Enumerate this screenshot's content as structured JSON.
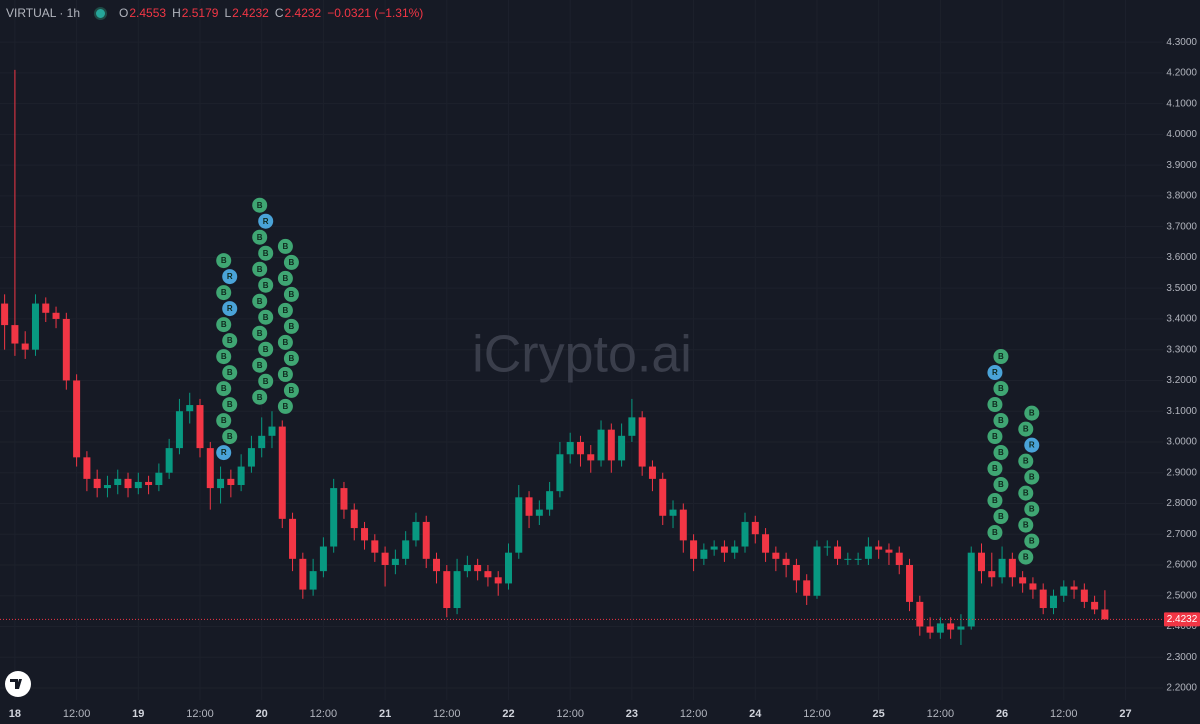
{
  "chart_data": {
    "type": "candlestick",
    "header": {
      "symbol": "VIRTUAL · 1h",
      "ohlc": [
        {
          "label": "O",
          "value": "2.4553"
        },
        {
          "label": "H",
          "value": "2.5179"
        },
        {
          "label": "L",
          "value": "2.4232"
        },
        {
          "label": "C",
          "value": "2.4232"
        }
      ],
      "change": "−0.0321 (−1.31%)"
    },
    "watermark": "iCrypto.ai",
    "up_color": "#089981",
    "down_color": "#f23645",
    "x": [
      -2,
      0,
      2,
      4,
      6,
      8,
      10,
      12,
      14,
      16,
      18,
      20,
      22,
      24,
      26,
      28,
      30,
      32,
      34,
      36,
      38,
      40,
      42,
      44,
      46,
      48,
      50,
      52,
      54,
      56,
      58,
      60,
      62,
      64,
      66,
      68,
      70,
      72,
      74,
      76,
      78,
      80,
      82,
      84,
      86,
      88,
      90,
      92,
      94,
      96,
      98,
      100,
      102,
      104,
      106,
      108,
      110,
      112,
      114,
      116,
      118,
      120,
      122,
      124,
      126,
      128,
      130,
      132,
      134,
      136,
      138,
      140,
      142,
      144,
      146,
      148,
      150,
      152,
      154,
      156,
      158,
      160,
      162,
      164,
      166,
      168,
      170,
      172,
      174,
      176,
      178,
      180,
      182,
      184,
      186,
      188,
      190,
      192,
      194,
      196,
      198,
      200,
      202,
      204,
      206,
      208,
      210,
      212
    ],
    "open": [
      3.45,
      3.38,
      3.32,
      3.3,
      3.45,
      3.42,
      3.4,
      3.2,
      2.95,
      2.88,
      2.85,
      2.86,
      2.88,
      2.85,
      2.87,
      2.86,
      2.9,
      2.98,
      3.1,
      3.12,
      2.98,
      2.85,
      2.88,
      2.86,
      2.92,
      2.98,
      3.02,
      3.05,
      2.75,
      2.62,
      2.52,
      2.58,
      2.66,
      2.85,
      2.78,
      2.72,
      2.68,
      2.64,
      2.6,
      2.62,
      2.68,
      2.74,
      2.62,
      2.58,
      2.46,
      2.58,
      2.6,
      2.58,
      2.56,
      2.54,
      2.64,
      2.82,
      2.76,
      2.78,
      2.84,
      2.96,
      3.0,
      2.96,
      2.94,
      3.04,
      2.94,
      3.02,
      3.08,
      2.92,
      2.88,
      2.76,
      2.78,
      2.68,
      2.62,
      2.65,
      2.66,
      2.64,
      2.66,
      2.74,
      2.7,
      2.64,
      2.62,
      2.6,
      2.55,
      2.5,
      2.66,
      2.66,
      2.62,
      2.62,
      2.62,
      2.66,
      2.65,
      2.64,
      2.6,
      2.48,
      2.4,
      2.38,
      2.41,
      2.39,
      2.4,
      2.64,
      2.58,
      2.56,
      2.62,
      2.56,
      2.54,
      2.52,
      2.46,
      2.5,
      2.53,
      2.52,
      2.48,
      2.4553
    ],
    "high": [
      3.48,
      4.21,
      3.36,
      3.48,
      3.47,
      3.44,
      3.42,
      3.22,
      2.97,
      2.91,
      2.89,
      2.91,
      2.9,
      2.9,
      2.89,
      2.93,
      3.01,
      3.14,
      3.16,
      3.14,
      3.0,
      2.92,
      2.91,
      2.96,
      3.02,
      3.08,
      3.1,
      3.07,
      2.77,
      2.64,
      2.62,
      2.69,
      2.88,
      2.87,
      2.8,
      2.74,
      2.7,
      2.66,
      2.65,
      2.71,
      2.77,
      2.76,
      2.64,
      2.6,
      2.62,
      2.63,
      2.62,
      2.6,
      2.58,
      2.67,
      2.86,
      2.84,
      2.81,
      2.87,
      3.0,
      3.03,
      3.02,
      2.99,
      3.07,
      3.06,
      3.06,
      3.14,
      3.1,
      2.94,
      2.9,
      2.81,
      2.8,
      2.7,
      2.67,
      2.68,
      2.68,
      2.68,
      2.77,
      2.76,
      2.72,
      2.66,
      2.64,
      2.62,
      2.57,
      2.68,
      2.68,
      2.68,
      2.64,
      2.64,
      2.69,
      2.68,
      2.67,
      2.66,
      2.62,
      2.5,
      2.43,
      2.43,
      2.43,
      2.44,
      2.66,
      2.67,
      2.64,
      2.66,
      2.64,
      2.58,
      2.56,
      2.54,
      2.52,
      2.55,
      2.55,
      2.54,
      2.5,
      2.5179
    ],
    "low": [
      3.3,
      3.28,
      3.27,
      3.28,
      3.39,
      3.37,
      3.17,
      2.92,
      2.84,
      2.82,
      2.82,
      2.83,
      2.82,
      2.83,
      2.83,
      2.84,
      2.88,
      2.96,
      3.06,
      2.95,
      2.78,
      2.8,
      2.82,
      2.84,
      2.9,
      2.95,
      2.98,
      2.72,
      2.58,
      2.49,
      2.5,
      2.56,
      2.64,
      2.75,
      2.68,
      2.65,
      2.61,
      2.53,
      2.57,
      2.6,
      2.66,
      2.59,
      2.54,
      2.43,
      2.44,
      2.56,
      2.55,
      2.53,
      2.5,
      2.52,
      2.62,
      2.72,
      2.73,
      2.76,
      2.82,
      2.93,
      2.92,
      2.9,
      2.92,
      2.9,
      2.92,
      3.0,
      2.89,
      2.84,
      2.73,
      2.72,
      2.64,
      2.58,
      2.6,
      2.63,
      2.61,
      2.62,
      2.64,
      2.67,
      2.61,
      2.58,
      2.56,
      2.51,
      2.47,
      2.49,
      2.63,
      2.6,
      2.6,
      2.6,
      2.6,
      2.62,
      2.6,
      2.57,
      2.45,
      2.37,
      2.36,
      2.36,
      2.36,
      2.34,
      2.39,
      2.54,
      2.53,
      2.54,
      2.53,
      2.51,
      2.49,
      2.44,
      2.44,
      2.48,
      2.49,
      2.46,
      2.44,
      2.4232
    ],
    "close": [
      3.38,
      3.32,
      3.3,
      3.45,
      3.42,
      3.4,
      3.2,
      2.95,
      2.88,
      2.85,
      2.86,
      2.88,
      2.85,
      2.87,
      2.86,
      2.9,
      2.98,
      3.1,
      3.12,
      2.98,
      2.85,
      2.88,
      2.86,
      2.92,
      2.98,
      3.02,
      3.05,
      2.75,
      2.62,
      2.52,
      2.58,
      2.66,
      2.85,
      2.78,
      2.72,
      2.68,
      2.64,
      2.6,
      2.62,
      2.68,
      2.74,
      2.62,
      2.58,
      2.46,
      2.58,
      2.6,
      2.58,
      2.56,
      2.54,
      2.64,
      2.82,
      2.76,
      2.78,
      2.84,
      2.96,
      3.0,
      2.96,
      2.94,
      3.04,
      2.94,
      3.02,
      3.08,
      2.92,
      2.88,
      2.76,
      2.78,
      2.68,
      2.62,
      2.65,
      2.66,
      2.64,
      2.66,
      2.74,
      2.7,
      2.64,
      2.62,
      2.6,
      2.55,
      2.5,
      2.66,
      2.66,
      2.62,
      2.62,
      2.62,
      2.66,
      2.65,
      2.64,
      2.6,
      2.48,
      2.4,
      2.38,
      2.41,
      2.39,
      2.4,
      2.64,
      2.58,
      2.56,
      2.62,
      2.56,
      2.54,
      2.52,
      2.46,
      2.5,
      2.53,
      2.52,
      2.48,
      2.4553,
      2.4232
    ],
    "xlim": [
      -2.9,
      223.3
    ],
    "xticks": [
      {
        "value": 0,
        "label": "18"
      },
      {
        "value": 12,
        "label": "12:00"
      },
      {
        "value": 24,
        "label": "19"
      },
      {
        "value": 36,
        "label": "12:00"
      },
      {
        "value": 48,
        "label": "20"
      },
      {
        "value": 60,
        "label": "12:00"
      },
      {
        "value": 72,
        "label": "21"
      },
      {
        "value": 84,
        "label": "12:00"
      },
      {
        "value": 96,
        "label": "22"
      },
      {
        "value": 108,
        "label": "12:00"
      },
      {
        "value": 120,
        "label": "23"
      },
      {
        "value": 132,
        "label": "12:00"
      },
      {
        "value": 144,
        "label": "24"
      },
      {
        "value": 156,
        "label": "12:00"
      },
      {
        "value": 168,
        "label": "25"
      },
      {
        "value": 180,
        "label": "12:00"
      },
      {
        "value": 192,
        "label": "26"
      },
      {
        "value": 204,
        "label": "12:00"
      },
      {
        "value": 216,
        "label": "27"
      }
    ],
    "ylim": [
      2.161,
      4.437
    ],
    "yticks": [
      {
        "value": 2.2,
        "label": "2.2000"
      },
      {
        "value": 2.3,
        "label": "2.3000"
      },
      {
        "value": 2.4,
        "label": "2.4000"
      },
      {
        "value": 2.5,
        "label": "2.5000"
      },
      {
        "value": 2.6,
        "label": "2.6000"
      },
      {
        "value": 2.7,
        "label": "2.7000"
      },
      {
        "value": 2.8,
        "label": "2.8000"
      },
      {
        "value": 2.9,
        "label": "2.9000"
      },
      {
        "value": 3.0,
        "label": "3.0000"
      },
      {
        "value": 3.1,
        "label": "3.1000"
      },
      {
        "value": 3.2,
        "label": "3.2000"
      },
      {
        "value": 3.3,
        "label": "3.3000"
      },
      {
        "value": 3.4,
        "label": "3.4000"
      },
      {
        "value": 3.5,
        "label": "3.5000"
      },
      {
        "value": 3.6,
        "label": "3.6000"
      },
      {
        "value": 3.7,
        "label": "3.7000"
      },
      {
        "value": 3.8,
        "label": "3.8000"
      },
      {
        "value": 3.9,
        "label": "3.9000"
      },
      {
        "value": 4.0,
        "label": "4.0000"
      },
      {
        "value": 4.1,
        "label": "4.1000"
      },
      {
        "value": 4.2,
        "label": "4.2000"
      },
      {
        "value": 4.3,
        "label": "4.3000"
      }
    ],
    "grid": true,
    "last_price": {
      "value": 2.4232,
      "label": "2.4232"
    },
    "markers": [
      {
        "x": 41,
        "labels": [
          "R",
          "B",
          "B",
          "B",
          "B",
          "B",
          "B",
          "B",
          "B",
          "R",
          "B",
          "R",
          "B"
        ]
      },
      {
        "x": 48,
        "labels": [
          "B",
          "B",
          "B",
          "B",
          "B",
          "B",
          "B",
          "B",
          "B",
          "B",
          "B",
          "R",
          "B"
        ]
      },
      {
        "x": 53,
        "labels": [
          "B",
          "B",
          "B",
          "B",
          "B",
          "B",
          "B",
          "B",
          "B",
          "B",
          "B"
        ]
      },
      {
        "x": 191,
        "labels": [
          "B",
          "B",
          "B",
          "B",
          "B",
          "B",
          "B",
          "B",
          "B",
          "B",
          "R",
          "B"
        ]
      },
      {
        "x": 197,
        "labels": [
          "B",
          "B",
          "B",
          "B",
          "B",
          "B",
          "B",
          "R",
          "B",
          "B"
        ]
      }
    ]
  }
}
